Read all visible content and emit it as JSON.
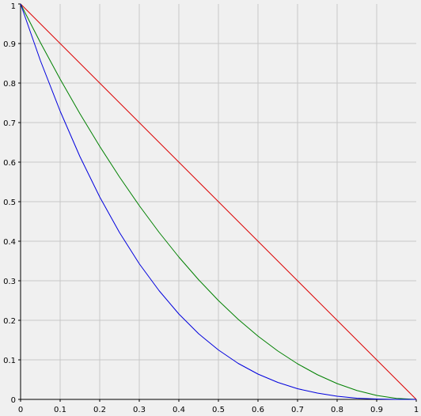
{
  "chart_data": {
    "type": "line",
    "title": "",
    "xlabel": "",
    "ylabel": "",
    "xlim": [
      0,
      1
    ],
    "ylim": [
      0,
      1
    ],
    "grid": true,
    "legend": "none",
    "x_ticks": [
      "0",
      "0.1",
      "0.2",
      "0.3",
      "0.4",
      "0.5",
      "0.6",
      "0.7",
      "0.8",
      "0.9",
      "1"
    ],
    "y_ticks": [
      "0",
      "0.1",
      "0.2",
      "0.3",
      "0.4",
      "0.5",
      "0.6",
      "0.7",
      "0.8",
      "0.9",
      "1"
    ],
    "x": [
      0,
      0.05,
      0.1,
      0.15,
      0.2,
      0.25,
      0.3,
      0.35,
      0.4,
      0.45,
      0.5,
      0.55,
      0.6,
      0.65,
      0.7,
      0.75,
      0.8,
      0.85,
      0.9,
      0.95,
      1
    ],
    "series": [
      {
        "color": "#dd0000",
        "values": [
          1,
          0.95,
          0.9,
          0.85,
          0.8,
          0.75,
          0.7,
          0.65,
          0.6,
          0.55,
          0.5,
          0.45,
          0.4,
          0.35,
          0.3,
          0.25,
          0.2,
          0.15,
          0.1,
          0.05,
          0
        ]
      },
      {
        "color": "#008000",
        "values": [
          1,
          0.9025,
          0.81,
          0.7225,
          0.64,
          0.5625,
          0.49,
          0.4225,
          0.36,
          0.3025,
          0.25,
          0.2025,
          0.16,
          0.1225,
          0.09,
          0.0625,
          0.04,
          0.0225,
          0.01,
          0.0025,
          0
        ]
      },
      {
        "color": "#0000dd",
        "values": [
          1,
          0.857,
          0.729,
          0.614,
          0.512,
          0.422,
          0.343,
          0.275,
          0.216,
          0.166,
          0.125,
          0.091,
          0.064,
          0.043,
          0.027,
          0.016,
          0.008,
          0.003,
          0.001,
          0.0001,
          0
        ]
      }
    ],
    "colors": {
      "background": "#f0f0f0",
      "grid": "#c8c8c8",
      "axis": "#000000"
    }
  }
}
